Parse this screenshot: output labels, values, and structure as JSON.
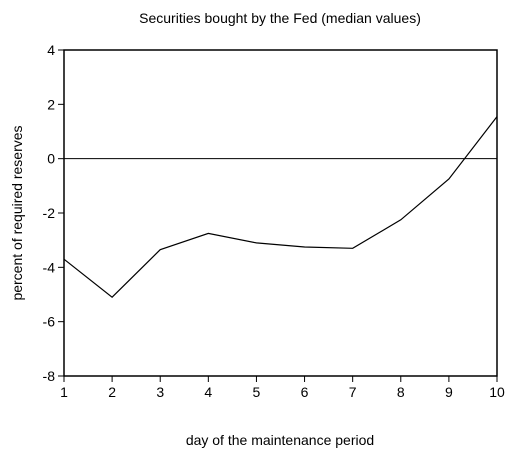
{
  "chart_data": {
    "type": "line",
    "title": "Securities bought by the Fed (median values)",
    "xlabel": "day of the maintenance period",
    "ylabel": "percent of required reserves",
    "x": [
      1,
      2,
      3,
      4,
      5,
      6,
      7,
      8,
      9,
      10
    ],
    "series": [
      {
        "values": [
          -3.7,
          -5.1,
          -3.35,
          -2.75,
          -3.1,
          -3.25,
          -3.3,
          -2.25,
          -0.75,
          1.55
        ]
      }
    ],
    "xlim": [
      1,
      10
    ],
    "ylim": [
      -8,
      4
    ],
    "xticks": [
      "1",
      "2",
      "3",
      "4",
      "5",
      "6",
      "7",
      "8",
      "9",
      "10"
    ],
    "yticks": [
      "-8",
      "-6",
      "-4",
      "-2",
      "0",
      "2",
      "4"
    ],
    "reference_line_y": 0,
    "grid": false,
    "legend": "none",
    "line_color": "#000000"
  }
}
